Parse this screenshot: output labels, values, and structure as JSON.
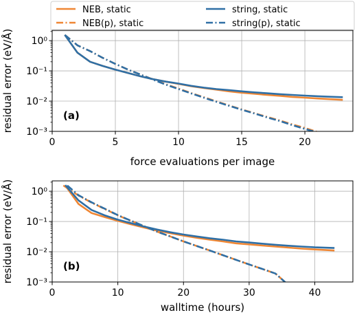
{
  "colors": {
    "neb": "#ef8633",
    "string": "#2f6fa5"
  },
  "legend": [
    {
      "label": "NEB, static",
      "color": "#ef8633",
      "dash": "solid"
    },
    {
      "label": "NEB(p), static",
      "color": "#ef8633",
      "dash": "dashdot"
    },
    {
      "label": "string, static",
      "color": "#2f6fa5",
      "dash": "solid"
    },
    {
      "label": "string(p), static",
      "color": "#2f6fa5",
      "dash": "dashdot"
    }
  ],
  "chart_data": [
    {
      "type": "line",
      "panel_label": "(a)",
      "xlabel": "force evaluations per image",
      "ylabel": "residual error (eV/Å)",
      "xlim": [
        0,
        23.8
      ],
      "ylim": [
        0.001,
        2.2
      ],
      "yscale": "log",
      "xticks": [
        0,
        5,
        10,
        15,
        20
      ],
      "yticks": [
        {
          "value": 1,
          "label": "10⁰"
        },
        {
          "value": 0.1,
          "label": "10⁻¹"
        },
        {
          "value": 0.01,
          "label": "10⁻²"
        },
        {
          "value": 0.001,
          "label": "10⁻³"
        }
      ],
      "series": [
        {
          "name": "NEB, static",
          "color": "#ef8633",
          "dash": "solid",
          "x": [
            1,
            2,
            3,
            4,
            5,
            6,
            7,
            8,
            9,
            10,
            11,
            12,
            13,
            14,
            15,
            16,
            17,
            18,
            19,
            20,
            21,
            22,
            23
          ],
          "y": [
            1.55,
            0.4,
            0.2,
            0.145,
            0.11,
            0.085,
            0.066,
            0.053,
            0.044,
            0.037,
            0.031,
            0.027,
            0.024,
            0.021,
            0.019,
            0.0175,
            0.016,
            0.015,
            0.0138,
            0.013,
            0.0122,
            0.0116,
            0.011
          ]
        },
        {
          "name": "NEB(p), static",
          "color": "#ef8633",
          "dash": "dashdot",
          "x": [
            1,
            2,
            3,
            4,
            5,
            6,
            7,
            8,
            9,
            10,
            11,
            12,
            13,
            14,
            15,
            16,
            17,
            18,
            19,
            20,
            21
          ],
          "y": [
            1.55,
            0.7,
            0.45,
            0.27,
            0.17,
            0.11,
            0.075,
            0.052,
            0.036,
            0.026,
            0.0185,
            0.0135,
            0.0098,
            0.0072,
            0.0053,
            0.004,
            0.003,
            0.0023,
            0.0017,
            0.0013,
            0.00095
          ]
        },
        {
          "name": "string, static",
          "color": "#2f6fa5",
          "dash": "solid",
          "x": [
            1,
            2,
            3,
            4,
            5,
            6,
            7,
            8,
            9,
            10,
            11,
            12,
            13,
            14,
            15,
            16,
            17,
            18,
            19,
            20,
            21,
            22,
            23
          ],
          "y": [
            1.55,
            0.4,
            0.2,
            0.145,
            0.11,
            0.085,
            0.066,
            0.053,
            0.044,
            0.038,
            0.032,
            0.028,
            0.025,
            0.023,
            0.021,
            0.0195,
            0.0182,
            0.017,
            0.016,
            0.0152,
            0.0145,
            0.0139,
            0.0135
          ]
        },
        {
          "name": "string(p), static",
          "color": "#2f6fa5",
          "dash": "dashdot",
          "x": [
            1,
            2,
            3,
            4,
            5,
            6,
            7,
            8,
            9,
            10,
            11,
            12,
            13,
            14,
            15,
            16,
            17,
            18,
            19,
            20,
            21
          ],
          "y": [
            1.55,
            0.7,
            0.45,
            0.27,
            0.17,
            0.11,
            0.075,
            0.051,
            0.035,
            0.025,
            0.018,
            0.013,
            0.0095,
            0.007,
            0.0052,
            0.0039,
            0.0029,
            0.0022,
            0.0016,
            0.0012,
            0.00092
          ]
        }
      ]
    },
    {
      "type": "line",
      "panel_label": "(b)",
      "xlabel": "walltime (hours)",
      "ylabel": "residual error (eV/Å)",
      "xlim": [
        0,
        45.8
      ],
      "ylim": [
        0.001,
        2.2
      ],
      "yscale": "log",
      "xticks": [
        0,
        10,
        20,
        30,
        40
      ],
      "yticks": [
        {
          "value": 1,
          "label": "10⁰"
        },
        {
          "value": 0.1,
          "label": "10⁻¹"
        },
        {
          "value": 0.01,
          "label": "10⁻²"
        },
        {
          "value": 0.001,
          "label": "10⁻³"
        }
      ],
      "series": [
        {
          "name": "NEB, static",
          "color": "#ef8633",
          "dash": "solid",
          "x": [
            2,
            4,
            6,
            8,
            10,
            12,
            14,
            16,
            18,
            20,
            22,
            24,
            26,
            28,
            30,
            32,
            34,
            36,
            38,
            40,
            43
          ],
          "y": [
            1.55,
            0.38,
            0.19,
            0.14,
            0.105,
            0.081,
            0.063,
            0.05,
            0.041,
            0.034,
            0.029,
            0.025,
            0.022,
            0.019,
            0.0175,
            0.016,
            0.0148,
            0.0137,
            0.0127,
            0.0119,
            0.011
          ]
        },
        {
          "name": "NEB(p), static",
          "color": "#ef8633",
          "dash": "dashdot",
          "x": [
            1.7,
            4,
            6,
            8,
            10,
            12,
            14,
            16,
            18,
            20,
            22,
            24,
            26,
            28,
            30,
            32,
            34,
            35.5
          ],
          "y": [
            1.55,
            0.72,
            0.42,
            0.26,
            0.16,
            0.105,
            0.07,
            0.046,
            0.032,
            0.022,
            0.0155,
            0.011,
            0.0077,
            0.0054,
            0.0038,
            0.0027,
            0.0019,
            0.00098
          ]
        },
        {
          "name": "string, static",
          "color": "#2f6fa5",
          "dash": "solid",
          "x": [
            2,
            4,
            6,
            8,
            10,
            12,
            14,
            16,
            18,
            20,
            22,
            24,
            26,
            28,
            30,
            32,
            34,
            36,
            38,
            40,
            43
          ],
          "y": [
            1.6,
            0.5,
            0.24,
            0.16,
            0.115,
            0.088,
            0.068,
            0.054,
            0.044,
            0.037,
            0.032,
            0.028,
            0.025,
            0.022,
            0.0202,
            0.0185,
            0.017,
            0.0158,
            0.0148,
            0.014,
            0.0133
          ]
        },
        {
          "name": "string(p), static",
          "color": "#2f6fa5",
          "dash": "dashdot",
          "x": [
            2.3,
            4,
            6,
            8,
            10,
            12,
            14,
            16,
            18,
            20,
            22,
            24,
            26,
            28,
            30,
            32,
            34,
            35.5
          ],
          "y": [
            1.55,
            0.74,
            0.43,
            0.265,
            0.162,
            0.106,
            0.07,
            0.046,
            0.032,
            0.022,
            0.0155,
            0.011,
            0.0077,
            0.0054,
            0.0038,
            0.0027,
            0.0019,
            0.00098
          ]
        }
      ]
    }
  ]
}
